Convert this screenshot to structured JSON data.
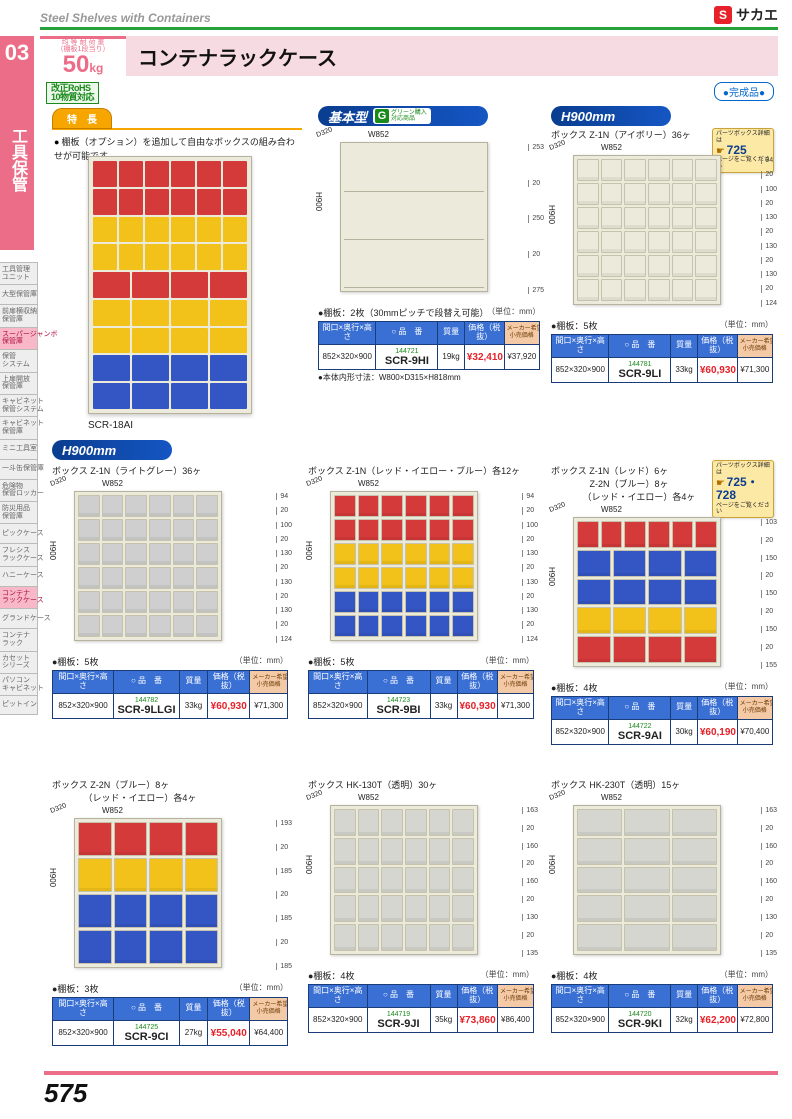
{
  "topbar": {
    "title": "Steel Shelves with Containers"
  },
  "brand": {
    "s": "S",
    "name": "サカエ"
  },
  "section": {
    "number": "03",
    "label": "工具保管"
  },
  "left_tabs": [
    {
      "label": "工具管理\nユニット",
      "active": false
    },
    {
      "label": "大型保管庫",
      "active": false
    },
    {
      "label": "前扉横収納\n保管庫",
      "active": false
    },
    {
      "label": "スーパージャンボ\n保管庫",
      "active": true
    },
    {
      "label": "保管\nシステム",
      "active": false
    },
    {
      "label": "上扉開放\n保管庫",
      "active": false
    },
    {
      "label": "キャビネット\n保管システム",
      "active": false
    },
    {
      "label": "キャビネット\n保管庫",
      "active": false
    },
    {
      "label": "ミニ工具室",
      "active": false
    },
    {
      "label": "一斗缶保管庫",
      "active": false
    },
    {
      "label": "危険物\n保管ロッカー",
      "active": false
    },
    {
      "label": "防災用品\n保管庫",
      "active": false
    },
    {
      "label": "ピックケース",
      "active": false
    },
    {
      "label": "フレシス\nラックケース",
      "active": false
    },
    {
      "label": "ハニーケース",
      "active": false
    },
    {
      "label": "コンテナ\nラックケース",
      "active": true
    },
    {
      "label": "グランドケース",
      "active": false
    },
    {
      "label": "コンテナ\nラック",
      "active": false
    },
    {
      "label": "カセット\nシリーズ",
      "active": false
    },
    {
      "label": "パソコン\nキャビネット",
      "active": false
    },
    {
      "label": "ピットイン",
      "active": false
    }
  ],
  "header": {
    "load_label": "均 等 耐 荷 重\n（棚板1段当り）",
    "load_value": "50",
    "load_unit": "kg",
    "product_title": "コンテナラックケース",
    "rohs": "改正RoHS\n10物質対応"
  },
  "badge_done": "●完成品●",
  "feature": {
    "tab": "特　長",
    "text": "棚板（オプション）を追加して自由なボックスの組み合わせが可能です。"
  },
  "hero": {
    "caption": "SCR-18AI",
    "rows": [
      {
        "n": 6,
        "c": "#d43a3a",
        "big": false
      },
      {
        "n": 6,
        "c": "#d43a3a",
        "big": false
      },
      {
        "n": 6,
        "c": "#f2c21a",
        "big": false
      },
      {
        "n": 6,
        "c": "#f2c21a",
        "big": false
      },
      {
        "n": 4,
        "c": "#d43a3a",
        "big": true
      },
      {
        "n": 4,
        "c": "#f2c21a",
        "big": true
      },
      {
        "n": 4,
        "c": "#f2c21a",
        "big": true
      },
      {
        "n": 4,
        "c": "#3356c4",
        "big": true
      },
      {
        "n": 4,
        "c": "#3356c4",
        "big": true
      }
    ]
  },
  "sections": {
    "basic": {
      "label": "基本型",
      "g": true,
      "g_txt": "グリーン購入\n対応商品"
    },
    "h900a": {
      "label": "H900mm"
    },
    "h900b": {
      "label": "H900mm"
    }
  },
  "parts_badges": {
    "p1": {
      "txt": "パーツボックス詳細は",
      "page": "725",
      "foot": "ページをご覧ください"
    },
    "p2": {
      "txt": "パーツボックス詳細は",
      "page": "725・728",
      "foot": "ページをご覧ください"
    }
  },
  "unit_note": "（単位：mm）",
  "dims_common": {
    "W": "W852",
    "D": "D320",
    "H": "H900"
  },
  "cells": {
    "c9hi": {
      "title": "",
      "shelf_note": "●棚板：2枚（30mmピッチで段替え可能）",
      "below_note": "●本体内形寸法：W800×D315×H818mm",
      "right_dims": [
        "253",
        "20",
        "250",
        "20",
        "275"
      ],
      "table": {
        "dim": "852×320×900",
        "item": "144721",
        "model": "SCR-9HI",
        "wt": "19kg",
        "price": "¥32,410",
        "mprice": "¥37,920"
      },
      "diagram": {
        "rows": [
          {
            "type": "empty"
          },
          {
            "type": "empty"
          },
          {
            "type": "empty"
          }
        ]
      }
    },
    "c9li": {
      "title": "ボックス Z-1N（アイボリー）36ヶ",
      "shelf_note": "●棚板：5枚",
      "right_dims": [
        "94",
        "20",
        "100",
        "20",
        "130",
        "20",
        "130",
        "20",
        "130",
        "20",
        "124"
      ],
      "table": {
        "dim": "852×320×900",
        "item": "144781",
        "model": "SCR-9LI",
        "wt": "33kg",
        "price": "¥60,930",
        "mprice": "¥71,300"
      },
      "diagram": {
        "rows": [
          {
            "type": "bins",
            "n": 6,
            "c": "#eceadb"
          },
          {
            "type": "bins",
            "n": 6,
            "c": "#eceadb"
          },
          {
            "type": "bins",
            "n": 6,
            "c": "#eceadb"
          },
          {
            "type": "bins",
            "n": 6,
            "c": "#eceadb"
          },
          {
            "type": "bins",
            "n": 6,
            "c": "#eceadb"
          },
          {
            "type": "bins",
            "n": 6,
            "c": "#eceadb"
          }
        ]
      }
    },
    "c9llgi": {
      "title": "ボックス Z-1N（ライトグレー）36ヶ",
      "shelf_note": "●棚板：5枚",
      "right_dims": [
        "94",
        "20",
        "100",
        "20",
        "130",
        "20",
        "130",
        "20",
        "130",
        "20",
        "124"
      ],
      "table": {
        "dim": "852×320×900",
        "item": "144782",
        "model": "SCR-9LLGI",
        "wt": "33kg",
        "price": "¥60,930",
        "mprice": "¥71,300"
      },
      "diagram": {
        "rows": [
          {
            "type": "bins",
            "n": 6,
            "c": "#cfcfcf"
          },
          {
            "type": "bins",
            "n": 6,
            "c": "#cfcfcf"
          },
          {
            "type": "bins",
            "n": 6,
            "c": "#cfcfcf"
          },
          {
            "type": "bins",
            "n": 6,
            "c": "#cfcfcf"
          },
          {
            "type": "bins",
            "n": 6,
            "c": "#cfcfcf"
          },
          {
            "type": "bins",
            "n": 6,
            "c": "#cfcfcf"
          }
        ]
      }
    },
    "c9bi": {
      "title": "ボックス Z-1N（レッド・イエロー・ブルー）各12ヶ",
      "shelf_note": "●棚板：5枚",
      "right_dims": [
        "94",
        "20",
        "100",
        "20",
        "130",
        "20",
        "130",
        "20",
        "130",
        "20",
        "124"
      ],
      "table": {
        "dim": "852×320×900",
        "item": "144723",
        "model": "SCR-9BI",
        "wt": "33kg",
        "price": "¥60,930",
        "mprice": "¥71,300"
      },
      "diagram": {
        "rows": [
          {
            "type": "bins",
            "n": 6,
            "c": "#d43a3a"
          },
          {
            "type": "bins",
            "n": 6,
            "c": "#d43a3a"
          },
          {
            "type": "bins",
            "n": 6,
            "c": "#f2c21a"
          },
          {
            "type": "bins",
            "n": 6,
            "c": "#f2c21a"
          },
          {
            "type": "bins",
            "n": 6,
            "c": "#3356c4"
          },
          {
            "type": "bins",
            "n": 6,
            "c": "#3356c4"
          }
        ]
      }
    },
    "c9ai": {
      "title": "ボックス Z-1N（レッド）6ヶ\n　　　　 Z-2N（ブルー）8ヶ\n　　　　（レッド・イエロー）各4ヶ",
      "shelf_note": "●棚板：4枚",
      "right_dims": [
        "103",
        "20",
        "150",
        "20",
        "150",
        "20",
        "150",
        "20",
        "155"
      ],
      "table": {
        "dim": "852×320×900",
        "item": "144722",
        "model": "SCR-9AI",
        "wt": "30kg",
        "price": "¥60,190",
        "mprice": "¥70,400"
      },
      "diagram": {
        "rows": [
          {
            "type": "bins",
            "n": 6,
            "c": "#d43a3a"
          },
          {
            "type": "bins",
            "n": 4,
            "c": "#3356c4"
          },
          {
            "type": "bins",
            "n": 4,
            "c": "#3356c4"
          },
          {
            "type": "bins",
            "n": 4,
            "c": "#f2c21a"
          },
          {
            "type": "bins",
            "n": 4,
            "c": "#d43a3a"
          }
        ]
      }
    },
    "c9ci": {
      "title": "ボックス Z-2N（ブルー）8ヶ\n　　　　（レッド・イエロー）各4ヶ",
      "shelf_note": "●棚板：3枚",
      "right_dims": [
        "193",
        "20",
        "185",
        "20",
        "185",
        "20",
        "185"
      ],
      "table": {
        "dim": "852×320×900",
        "item": "144725",
        "model": "SCR-9CI",
        "wt": "27kg",
        "price": "¥55,040",
        "mprice": "¥64,400"
      },
      "diagram": {
        "rows": [
          {
            "type": "bins",
            "n": 4,
            "c": "#d43a3a"
          },
          {
            "type": "bins",
            "n": 4,
            "c": "#f2c21a"
          },
          {
            "type": "bins",
            "n": 4,
            "c": "#3356c4"
          },
          {
            "type": "bins",
            "n": 4,
            "c": "#3356c4"
          }
        ]
      }
    },
    "c9ji": {
      "title": "ボックス HK-130T（透明）30ヶ",
      "shelf_note": "●棚板：4枚",
      "right_dims": [
        "163",
        "20",
        "160",
        "20",
        "160",
        "20",
        "130",
        "20",
        "135"
      ],
      "table": {
        "dim": "852×320×900",
        "item": "144719",
        "model": "SCR-9JI",
        "wt": "35kg",
        "price": "¥73,860",
        "mprice": "¥86,400"
      },
      "diagram": {
        "rows": [
          {
            "type": "bins",
            "n": 6,
            "c": "#d6d6d0"
          },
          {
            "type": "bins",
            "n": 6,
            "c": "#d6d6d0"
          },
          {
            "type": "bins",
            "n": 6,
            "c": "#d6d6d0"
          },
          {
            "type": "bins",
            "n": 6,
            "c": "#d6d6d0"
          },
          {
            "type": "bins",
            "n": 6,
            "c": "#d6d6d0"
          }
        ]
      }
    },
    "c9ki": {
      "title": "ボックス HK-230T（透明）15ヶ",
      "shelf_note": "●棚板：4枚",
      "right_dims": [
        "163",
        "20",
        "160",
        "20",
        "160",
        "20",
        "130",
        "20",
        "135"
      ],
      "table": {
        "dim": "852×320×900",
        "item": "144720",
        "model": "SCR-9KI",
        "wt": "32kg",
        "price": "¥62,200",
        "mprice": "¥72,800"
      },
      "diagram": {
        "rows": [
          {
            "type": "bins",
            "n": 3,
            "c": "#d6d6d0"
          },
          {
            "type": "bins",
            "n": 3,
            "c": "#d6d6d0"
          },
          {
            "type": "bins",
            "n": 3,
            "c": "#d6d6d0"
          },
          {
            "type": "bins",
            "n": 3,
            "c": "#d6d6d0"
          },
          {
            "type": "bins",
            "n": 3,
            "c": "#d6d6d0"
          }
        ]
      }
    }
  },
  "table_head": {
    "dim": "間口×奥行×高さ",
    "item": "○ 品　番",
    "model": "○ 品　番",
    "wt": "質量",
    "price": "価格（税抜）",
    "mprice": "メーカー希望\n小売価格"
  },
  "page_number": "575"
}
